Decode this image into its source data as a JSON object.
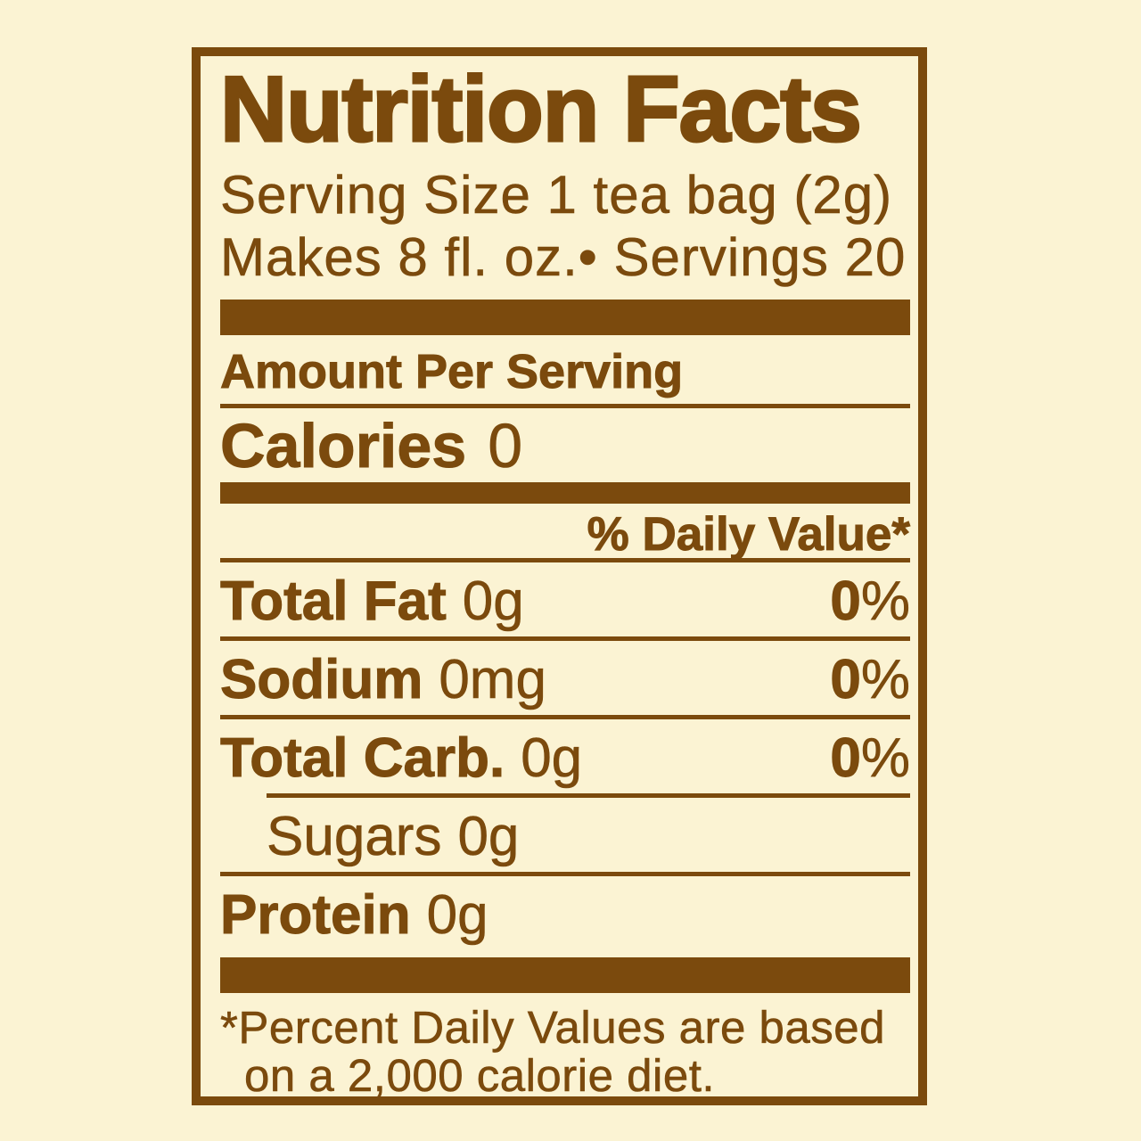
{
  "colors": {
    "text_brown": "#7B4A0D",
    "background_cream": "#FBF3D3"
  },
  "label": {
    "title": "Nutrition Facts",
    "serving_size_line": "Serving Size 1 tea bag (2g)",
    "servings_line": "Makes 8 fl. oz.• Servings 20",
    "amount_per_serving": "Amount Per Serving",
    "calories": {
      "name": "Calories",
      "value": "0"
    },
    "daily_value_header": "% Daily Value*",
    "percent_sign": "%",
    "rows": [
      {
        "name": "Total Fat",
        "amount": "0g",
        "daily_value": "0"
      },
      {
        "name": "Sodium",
        "amount": "0mg",
        "daily_value": "0"
      },
      {
        "name": "Total Carb.",
        "amount": "0g",
        "daily_value": "0"
      }
    ],
    "sugars_row": {
      "name": "Sugars",
      "amount": "0g"
    },
    "protein_row": {
      "name": "Protein",
      "amount": "0g"
    },
    "footnote_line1": "*Percent Daily Values are based",
    "footnote_line2": "on a 2,000 calorie diet."
  }
}
